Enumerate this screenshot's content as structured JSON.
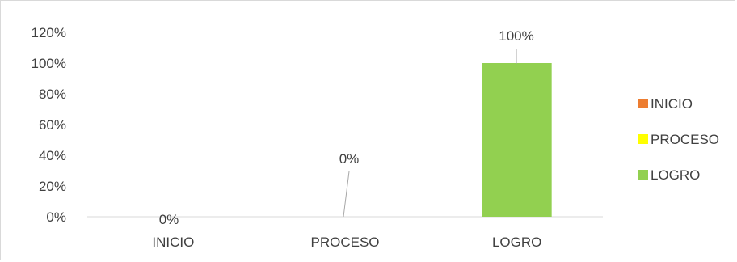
{
  "chart_data": {
    "type": "bar",
    "categories": [
      "INICIO",
      "PROCESO",
      "LOGRO"
    ],
    "values": [
      0,
      0,
      100
    ],
    "data_labels": [
      "0%",
      "0%",
      "100%"
    ],
    "colors": [
      "#ED7D31",
      "#FFFF00",
      "#92D050"
    ],
    "title": "",
    "xlabel": "",
    "ylabel": "",
    "ylim": [
      0,
      120
    ],
    "y_ticks": [
      "0%",
      "20%",
      "40%",
      "60%",
      "80%",
      "100%",
      "120%"
    ],
    "grid": false,
    "legend": {
      "position": "right",
      "entries": [
        "INICIO",
        "PROCESO",
        "LOGRO"
      ]
    }
  }
}
